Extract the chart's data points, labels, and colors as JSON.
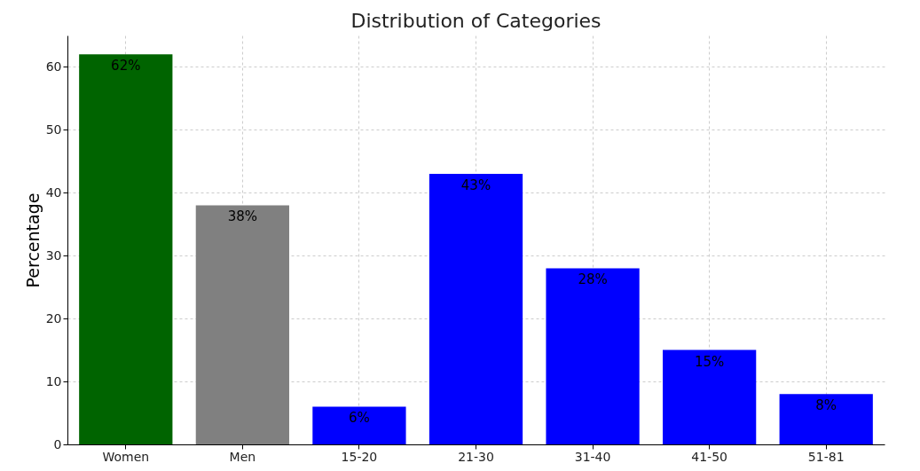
{
  "chart_data": {
    "type": "bar",
    "title": "Distribution of Categories",
    "ylabel": "Percentage",
    "categories": [
      "Women",
      "Men",
      "15-20",
      "21-30",
      "31-40",
      "41-50",
      "51-81"
    ],
    "values": [
      62,
      38,
      6,
      43,
      28,
      15,
      8
    ],
    "colors": [
      "#006400",
      "#808080",
      "#0000ff",
      "#0000ff",
      "#0000ff",
      "#0000ff",
      "#0000ff"
    ],
    "value_labels": [
      "62%",
      "38%",
      "6%",
      "43%",
      "28%",
      "15%",
      "8%"
    ],
    "ylim": [
      0,
      65
    ],
    "yticks": [
      0,
      10,
      20,
      30,
      40,
      50,
      60
    ],
    "grid": true
  }
}
